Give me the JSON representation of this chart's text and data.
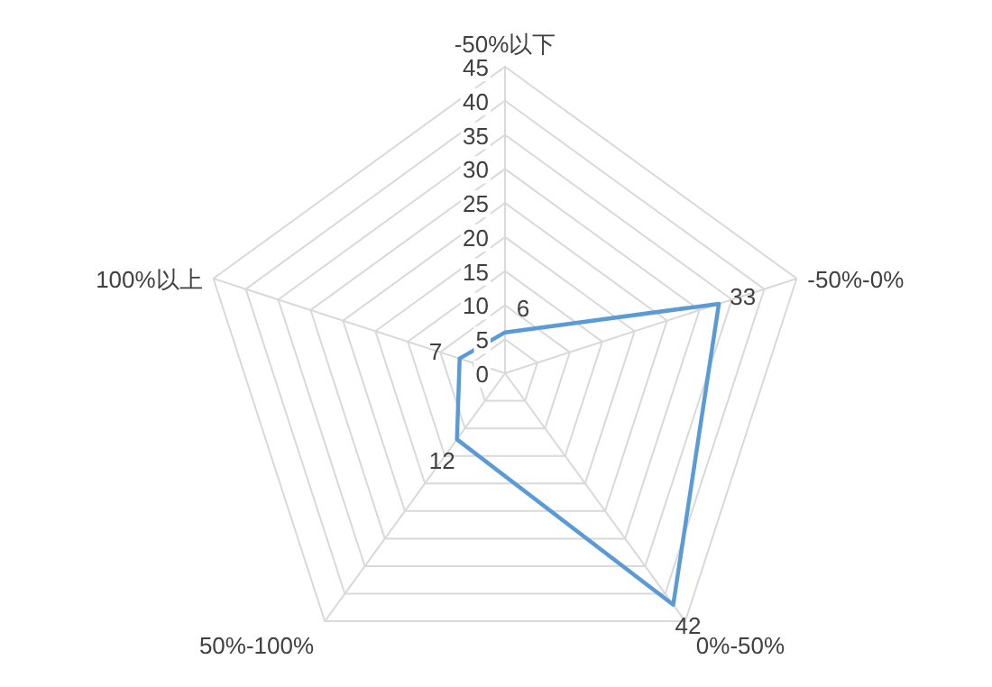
{
  "chart_data": {
    "type": "radar",
    "categories": [
      "-50%以下",
      "-50%-0%",
      "0%-50%",
      "50%-100%",
      "100%以上"
    ],
    "series": [
      {
        "color": "#5b9bd5",
        "values": [
          6,
          33,
          42,
          12,
          7
        ]
      }
    ],
    "ylim": [
      0,
      45
    ],
    "yticks": [
      0,
      5,
      10,
      15,
      20,
      25,
      30,
      35,
      40,
      45
    ],
    "grid": true,
    "data_labels": true
  }
}
